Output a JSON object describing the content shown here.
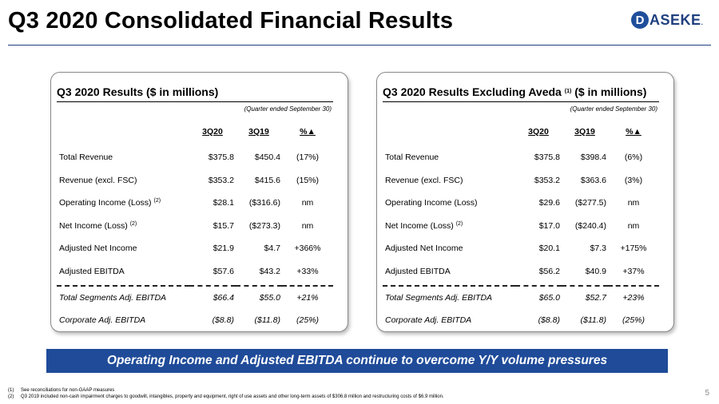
{
  "header": {
    "title": "Q3 2020 Consolidated Financial Results",
    "logo_letter": "D",
    "logo_text": "ASEKE",
    "logo_mark": "."
  },
  "panels": [
    {
      "title_pre": "Q3 2020 Results ($ in millions)",
      "title_sup": "",
      "title_post": "",
      "period": "(Quarter ended September 30)",
      "headers": [
        "",
        "3Q20",
        "3Q19",
        "%▲"
      ],
      "rows": [
        {
          "label": "Total Revenue",
          "sup": "",
          "a": "$375.8",
          "b": "$450.4",
          "c": "(17%)"
        },
        {
          "label": "Revenue (excl. FSC)",
          "sup": "",
          "a": "$353.2",
          "b": "$415.6",
          "c": "(15%)"
        },
        {
          "label": "Operating Income (Loss)",
          "sup": "(2)",
          "a": "$28.1",
          "b": "($316.6)",
          "c": "nm"
        },
        {
          "label": "Net Income (Loss)",
          "sup": "(2)",
          "a": "$15.7",
          "b": "($273.3)",
          "c": "nm"
        },
        {
          "label": "Adjusted Net Income",
          "sup": "",
          "a": "$21.9",
          "b": "$4.7",
          "c": "+366%"
        },
        {
          "label": "Adjusted EBITDA",
          "sup": "",
          "a": "$57.6",
          "b": "$43.2",
          "c": "+33%"
        }
      ],
      "seg_rows": [
        {
          "label": "Total Segments Adj. EBITDA",
          "a": "$66.4",
          "b": "$55.0",
          "c": "+21%"
        },
        {
          "label": "Corporate Adj. EBITDA",
          "a": "($8.8)",
          "b": "($11.8)",
          "c": "(25%)"
        }
      ]
    },
    {
      "title_pre": "Q3 2020 Results Excluding Aveda",
      "title_sup": "(1)",
      "title_post": "($ in millions)",
      "period": "(Quarter ended September 30)",
      "headers": [
        "",
        "3Q20",
        "3Q19",
        "%▲"
      ],
      "rows": [
        {
          "label": "Total Revenue",
          "sup": "",
          "a": "$375.8",
          "b": "$398.4",
          "c": "(6%)"
        },
        {
          "label": "Revenue (excl. FSC)",
          "sup": "",
          "a": "$353.2",
          "b": "$363.6",
          "c": "(3%)"
        },
        {
          "label": "Operating Income (Loss)",
          "sup": "",
          "a": "$29.6",
          "b": "($277.5)",
          "c": "nm"
        },
        {
          "label": "Net Income (Loss)",
          "sup": "(2)",
          "a": "$17.0",
          "b": "($240.4)",
          "c": "nm"
        },
        {
          "label": "Adjusted Net Income",
          "sup": "",
          "a": "$20.1",
          "b": "$7.3",
          "c": "+175%"
        },
        {
          "label": "Adjusted EBITDA",
          "sup": "",
          "a": "$56.2",
          "b": "$40.9",
          "c": "+37%"
        }
      ],
      "seg_rows": [
        {
          "label": "Total Segments Adj. EBITDA",
          "a": "$65.0",
          "b": "$52.7",
          "c": "+23%"
        },
        {
          "label": "Corporate Adj. EBITDA",
          "a": "($8.8)",
          "b": "($11.8)",
          "c": "(25%)"
        }
      ]
    }
  ],
  "banner": "Operating Income and Adjusted EBITDA continue to overcome Y/Y volume pressures",
  "footnotes": [
    {
      "num": "(1)",
      "text": "See reconciliations for non-GAAP measures"
    },
    {
      "num": "(2)",
      "text": "Q3 2019 included non-cash impairment charges to goodwill, intangibles, property and equipment, right of use assets and other long-term assets of $306.8 million and restructuring costs of $6.9 million."
    }
  ],
  "page_number": "5",
  "colors": {
    "brand_blue": "#1f4b99",
    "rule": "#1f3f7f"
  }
}
